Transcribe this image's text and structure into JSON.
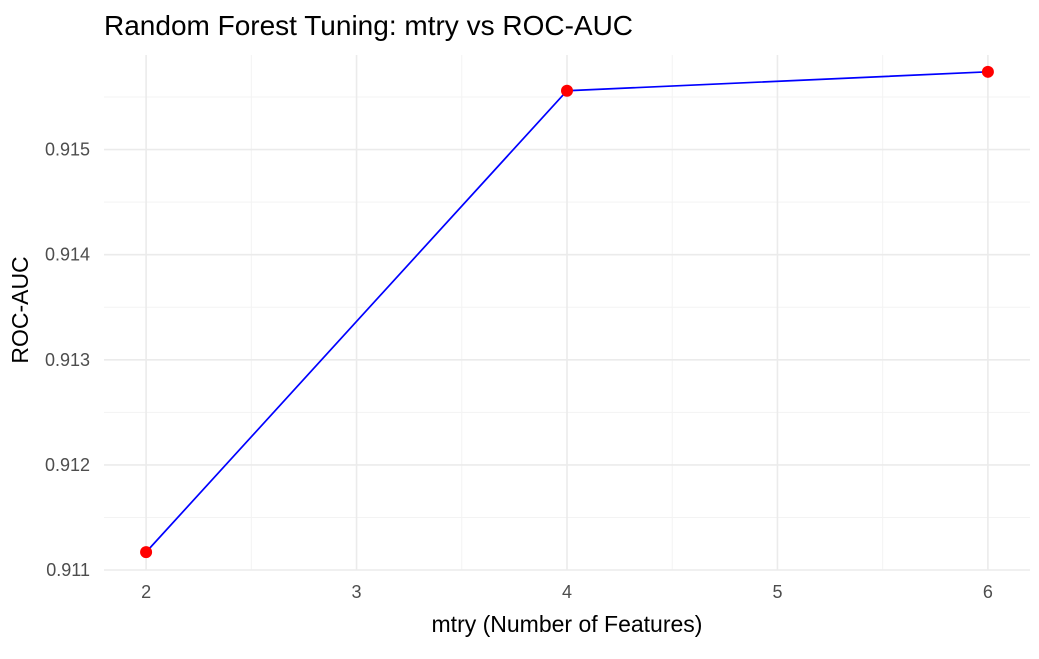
{
  "chart_data": {
    "type": "line",
    "title": "Random Forest Tuning: mtry vs ROC-AUC",
    "xlabel": "mtry (Number of Features)",
    "ylabel": "ROC-AUC",
    "x": [
      2,
      4,
      6
    ],
    "y": [
      0.91117,
      0.91556,
      0.91574
    ],
    "xlim": [
      1.8,
      6.2
    ],
    "ylim": [
      0.911,
      0.9159
    ],
    "x_ticks": [
      2,
      3,
      4,
      5,
      6
    ],
    "x_tick_labels": [
      "2",
      "3",
      "4",
      "5",
      "6"
    ],
    "y_ticks": [
      0.911,
      0.912,
      0.913,
      0.914,
      0.915
    ],
    "y_tick_labels": [
      "0.911",
      "0.912",
      "0.913",
      "0.914",
      "0.915"
    ],
    "grid": true,
    "line_color": "#0000ff",
    "point_color": "#ff0000",
    "theme": "minimal"
  }
}
